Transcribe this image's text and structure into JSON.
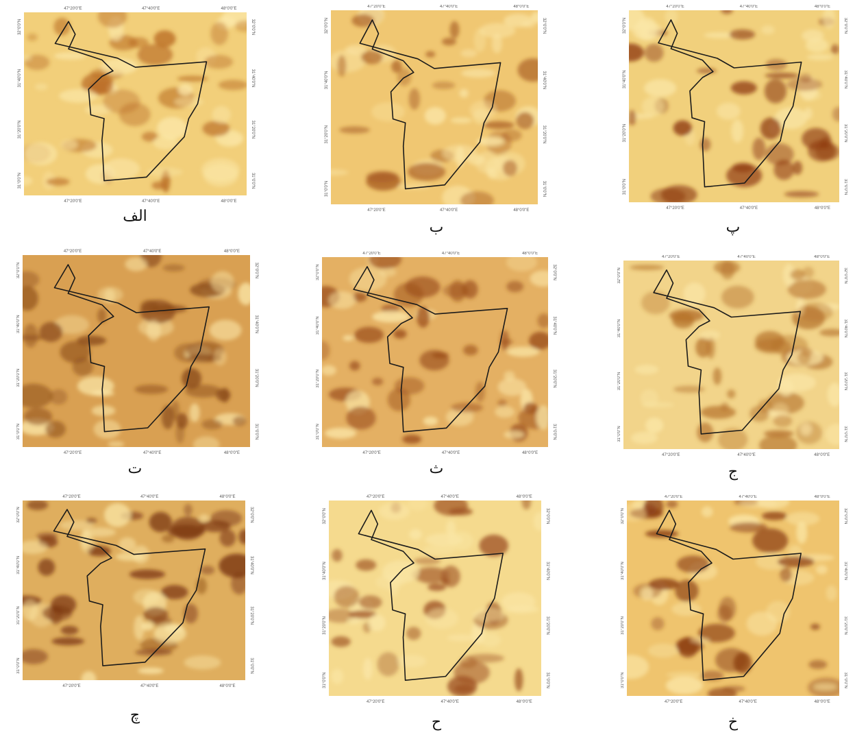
{
  "panels": [
    {
      "label": "الف"
    },
    {
      "label": "ب"
    },
    {
      "label": "پ"
    },
    {
      "label": "ت"
    },
    {
      "label": "ث"
    },
    {
      "label": "ج"
    },
    {
      "label": "چ"
    },
    {
      "label": "ح"
    },
    {
      "label": "خ"
    }
  ],
  "x_ticks": [
    "47°20'0\"E",
    "47°40'0\"E",
    "48°0'0\"E"
  ],
  "y_ticks": [
    "32°0'0\"N",
    "31°40'0\"N",
    "31°20'0\"N",
    "31°0'0\"N"
  ]
}
